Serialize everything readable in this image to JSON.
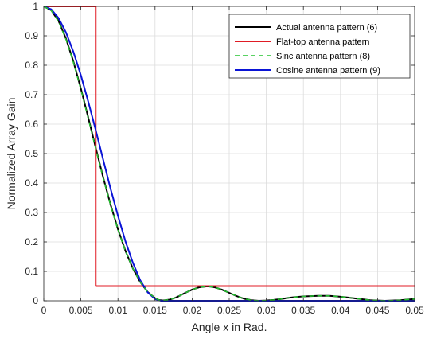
{
  "chart_data": {
    "type": "line",
    "title": "",
    "xlabel": "Angle x in Rad.",
    "ylabel": "Normalized Array Gain",
    "xlim": [
      0,
      0.05
    ],
    "ylim": [
      0,
      1
    ],
    "xticks": [
      0,
      0.005,
      0.01,
      0.015,
      0.02,
      0.025,
      0.03,
      0.035,
      0.04,
      0.045,
      0.05
    ],
    "xtick_labels": [
      "0",
      "0.005",
      "0.01",
      "0.015",
      "0.02",
      "0.025",
      "0.03",
      "0.035",
      "0.04",
      "0.045",
      "0.05"
    ],
    "yticks": [
      0,
      0.1,
      0.2,
      0.3,
      0.4,
      0.5,
      0.6,
      0.7,
      0.8,
      0.9,
      1
    ],
    "ytick_labels": [
      "0",
      "0.1",
      "0.2",
      "0.3",
      "0.4",
      "0.5",
      "0.6",
      "0.7",
      "0.8",
      "0.9",
      "1"
    ],
    "grid": true,
    "legend_position": "top-right",
    "series": [
      {
        "name": "Actual antenna pattern (6)",
        "color": "#000000",
        "style": "solid",
        "x": [
          0,
          0.001,
          0.002,
          0.003,
          0.004,
          0.005,
          0.006,
          0.007,
          0.008,
          0.009,
          0.01,
          0.011,
          0.012,
          0.013,
          0.014,
          0.015,
          0.0155,
          0.016,
          0.017,
          0.018,
          0.019,
          0.02,
          0.021,
          0.022,
          0.0225,
          0.023,
          0.024,
          0.025,
          0.026,
          0.027,
          0.028,
          0.029,
          0.03,
          0.031,
          0.032,
          0.033,
          0.034,
          0.035,
          0.036,
          0.037,
          0.038,
          0.0385,
          0.039,
          0.04,
          0.041,
          0.042,
          0.043,
          0.044,
          0.045,
          0.046,
          0.047,
          0.048,
          0.049,
          0.05
        ],
        "y": [
          1,
          0.987,
          0.95,
          0.89,
          0.812,
          0.721,
          0.622,
          0.52,
          0.42,
          0.327,
          0.243,
          0.17,
          0.11,
          0.064,
          0.03,
          0.009,
          0.003,
          0.001,
          0.004,
          0.013,
          0.026,
          0.038,
          0.046,
          0.049,
          0.048,
          0.046,
          0.038,
          0.027,
          0.016,
          0.007,
          0.002,
          0.0,
          0.001,
          0.003,
          0.006,
          0.01,
          0.013,
          0.015,
          0.016,
          0.017,
          0.017,
          0.017,
          0.016,
          0.014,
          0.011,
          0.008,
          0.005,
          0.002,
          0.001,
          0.0,
          0.001,
          0.002,
          0.004,
          0.006
        ]
      },
      {
        "name": "Flat-top antenna pattern",
        "color": "#e01b24",
        "style": "solid",
        "x": [
          0,
          0.007,
          0.007,
          0.05
        ],
        "y": [
          1,
          1,
          0.05,
          0.05
        ]
      },
      {
        "name": "Sinc antenna pattern (8)",
        "color": "#22c32e",
        "style": "dashed",
        "x": [
          0,
          0.001,
          0.002,
          0.003,
          0.004,
          0.005,
          0.006,
          0.007,
          0.008,
          0.009,
          0.01,
          0.011,
          0.012,
          0.013,
          0.014,
          0.015,
          0.0155,
          0.016,
          0.017,
          0.018,
          0.019,
          0.02,
          0.021,
          0.022,
          0.0225,
          0.023,
          0.024,
          0.025,
          0.026,
          0.027,
          0.028,
          0.029,
          0.03,
          0.031,
          0.032,
          0.033,
          0.034,
          0.035,
          0.036,
          0.037,
          0.038,
          0.0385,
          0.039,
          0.04,
          0.041,
          0.042,
          0.043,
          0.044,
          0.045,
          0.046,
          0.047,
          0.048,
          0.049,
          0.05
        ],
        "y": [
          1,
          0.986,
          0.948,
          0.887,
          0.809,
          0.718,
          0.619,
          0.517,
          0.418,
          0.325,
          0.242,
          0.169,
          0.11,
          0.064,
          0.03,
          0.009,
          0.003,
          0.001,
          0.004,
          0.013,
          0.026,
          0.038,
          0.046,
          0.049,
          0.048,
          0.046,
          0.038,
          0.027,
          0.016,
          0.007,
          0.002,
          0.0,
          0.001,
          0.003,
          0.006,
          0.01,
          0.013,
          0.015,
          0.016,
          0.017,
          0.017,
          0.017,
          0.016,
          0.014,
          0.011,
          0.008,
          0.005,
          0.002,
          0.001,
          0.0,
          0.001,
          0.002,
          0.004,
          0.006
        ]
      },
      {
        "name": "Cosine antenna pattern (9)",
        "color": "#0a14d6",
        "style": "solid",
        "x": [
          0,
          0.001,
          0.002,
          0.003,
          0.004,
          0.005,
          0.006,
          0.007,
          0.008,
          0.009,
          0.01,
          0.011,
          0.012,
          0.013,
          0.014,
          0.015,
          0.0158,
          0.016,
          0.017,
          0.018,
          0.019,
          0.02,
          0.025,
          0.03,
          0.035,
          0.04,
          0.045,
          0.05
        ],
        "y": [
          1,
          0.99,
          0.96,
          0.911,
          0.845,
          0.766,
          0.676,
          0.58,
          0.48,
          0.381,
          0.289,
          0.203,
          0.13,
          0.07,
          0.029,
          0.006,
          0.0,
          0.0,
          0.0,
          0.0,
          0.0,
          0.0,
          0.0,
          0.0,
          0.0,
          0.0,
          0.0,
          0.0
        ]
      }
    ]
  }
}
